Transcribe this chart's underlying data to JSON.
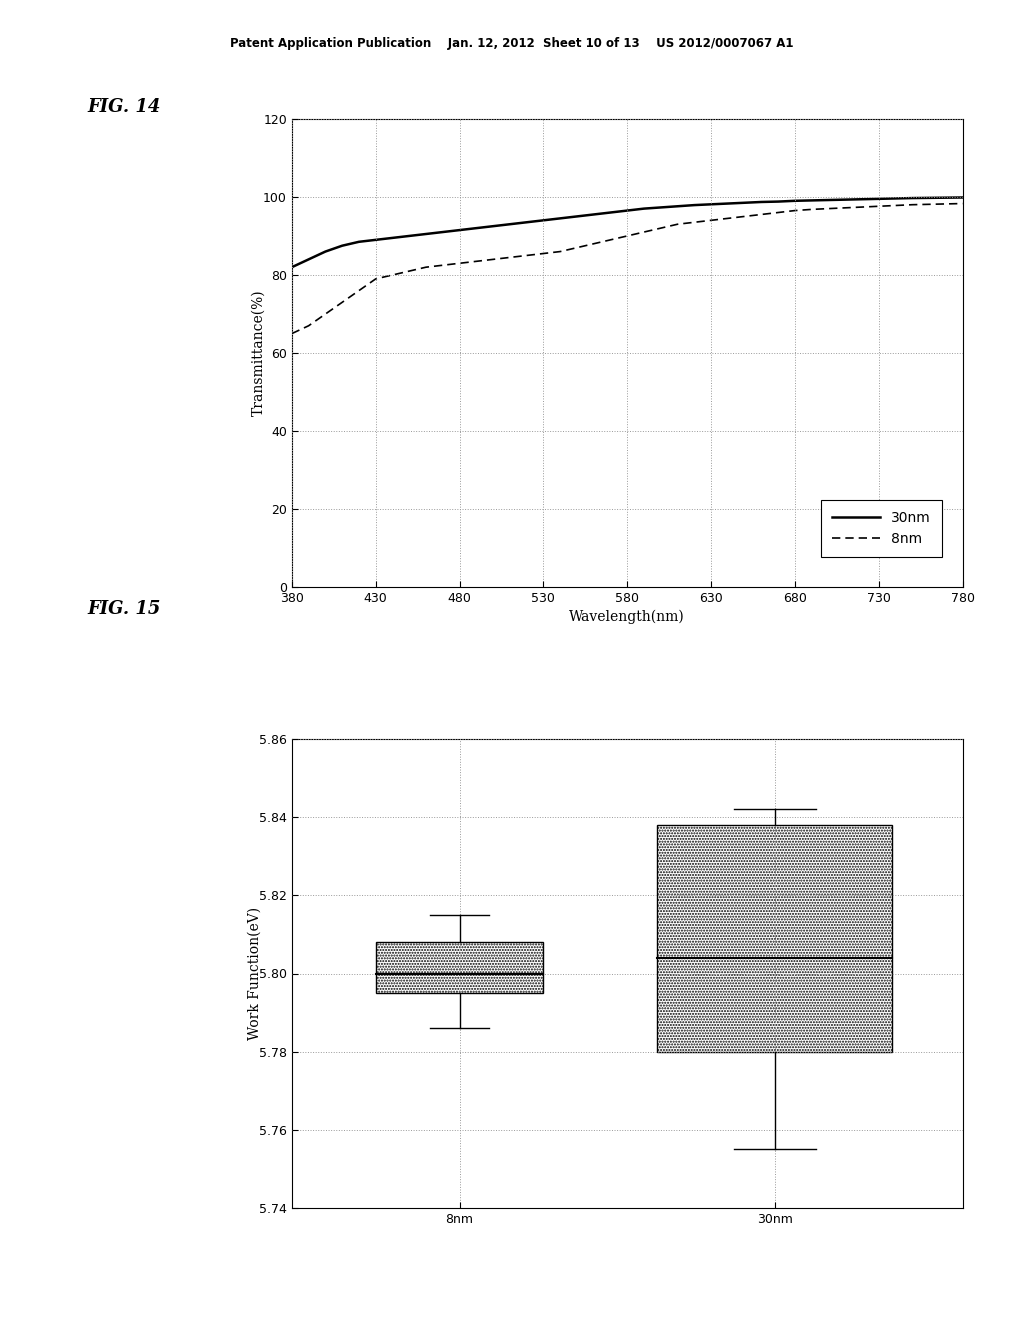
{
  "fig14": {
    "xlabel": "Wavelength(nm)",
    "ylabel": "Transmittance(%)",
    "xlim": [
      380,
      780
    ],
    "ylim": [
      0,
      120
    ],
    "xticks": [
      380,
      430,
      480,
      530,
      580,
      630,
      680,
      730,
      780
    ],
    "yticks": [
      0,
      20,
      40,
      60,
      80,
      100,
      120
    ],
    "curve_8nm_x": [
      380,
      390,
      400,
      410,
      420,
      430,
      440,
      450,
      460,
      470,
      480,
      490,
      500,
      510,
      520,
      530,
      540,
      550,
      560,
      570,
      580,
      590,
      600,
      610,
      620,
      630,
      640,
      650,
      660,
      670,
      680,
      690,
      700,
      710,
      720,
      730,
      740,
      750,
      760,
      770,
      780
    ],
    "curve_8nm_y": [
      65,
      67,
      70,
      73,
      76,
      79,
      80,
      81,
      82,
      82.5,
      83,
      83.5,
      84,
      84.5,
      85,
      85.5,
      86,
      87,
      88,
      89,
      90,
      91,
      92,
      93,
      93.5,
      94,
      94.5,
      95,
      95.5,
      96,
      96.5,
      96.8,
      97,
      97.2,
      97.4,
      97.6,
      97.8,
      98,
      98.1,
      98.2,
      98.3
    ],
    "curve_30nm_x": [
      380,
      390,
      400,
      410,
      420,
      430,
      440,
      450,
      460,
      470,
      480,
      490,
      500,
      510,
      520,
      530,
      540,
      550,
      560,
      570,
      580,
      590,
      600,
      610,
      620,
      630,
      640,
      650,
      660,
      670,
      680,
      690,
      700,
      710,
      720,
      730,
      740,
      750,
      760,
      770,
      780
    ],
    "curve_30nm_y": [
      82,
      84,
      86,
      87.5,
      88.5,
      89,
      89.5,
      90,
      90.5,
      91,
      91.5,
      92,
      92.5,
      93,
      93.5,
      94,
      94.5,
      95,
      95.5,
      96,
      96.5,
      97,
      97.3,
      97.6,
      97.9,
      98.1,
      98.3,
      98.5,
      98.7,
      98.8,
      99,
      99.1,
      99.2,
      99.3,
      99.4,
      99.5,
      99.6,
      99.7,
      99.75,
      99.8,
      99.85
    ],
    "legend_8nm": "8nm",
    "legend_30nm": "30nm"
  },
  "fig15": {
    "ylabel": "Work Function(eV)",
    "ylim": [
      5.74,
      5.86
    ],
    "yticks": [
      5.74,
      5.76,
      5.78,
      5.8,
      5.82,
      5.84,
      5.86
    ],
    "categories": [
      "8nm",
      "30nm"
    ],
    "box_8nm": {
      "whisker_low": 5.786,
      "q1": 5.795,
      "median": 5.8,
      "q3": 5.808,
      "whisker_high": 5.815
    },
    "box_30nm": {
      "whisker_low": 5.755,
      "q1": 5.78,
      "median": 5.804,
      "q3": 5.838,
      "whisker_high": 5.842
    }
  },
  "header_text": "Patent Application Publication    Jan. 12, 2012  Sheet 10 of 13    US 2012/0007067 A1",
  "fig14_label": "FIG. 14",
  "fig15_label": "FIG. 15",
  "bg_color": "#ffffff",
  "text_color": "#000000"
}
